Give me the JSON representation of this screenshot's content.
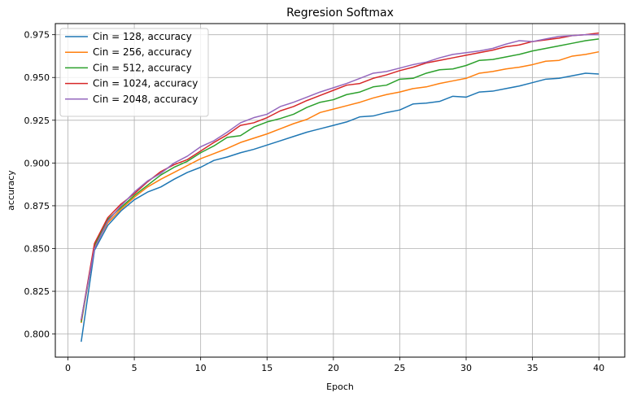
{
  "chart_data": {
    "type": "line",
    "title": "Regresion Softmax",
    "xlabel": "Epoch",
    "ylabel": "accuracy",
    "xlim": [
      -0.95,
      41.95
    ],
    "ylim": [
      0.7865,
      0.9815
    ],
    "xticks": [
      0,
      5,
      10,
      15,
      20,
      25,
      30,
      35,
      40
    ],
    "yticks": [
      0.8,
      0.825,
      0.85,
      0.875,
      0.9,
      0.925,
      0.95,
      0.975
    ],
    "grid": true,
    "legend_position": "top-left",
    "x": [
      1,
      2,
      3,
      4,
      5,
      6,
      7,
      8,
      9,
      10,
      11,
      12,
      13,
      14,
      15,
      16,
      17,
      18,
      19,
      20,
      21,
      22,
      23,
      24,
      25,
      26,
      27,
      28,
      29,
      30,
      31,
      32,
      33,
      34,
      35,
      36,
      37,
      38,
      39,
      40
    ],
    "series": [
      {
        "name": "Cin = 128, accuracy",
        "color": "#1f77b4",
        "values": [
          0.7955,
          0.849,
          0.8635,
          0.872,
          0.8785,
          0.883,
          0.886,
          0.8905,
          0.8945,
          0.8975,
          0.9015,
          0.9035,
          0.906,
          0.908,
          0.9105,
          0.913,
          0.9155,
          0.918,
          0.92,
          0.922,
          0.924,
          0.927,
          0.9275,
          0.9295,
          0.931,
          0.9345,
          0.935,
          0.936,
          0.939,
          0.9385,
          0.9415,
          0.942,
          0.9435,
          0.945,
          0.947,
          0.949,
          0.9495,
          0.951,
          0.9525,
          0.952
        ]
      },
      {
        "name": "Cin = 256, accuracy",
        "color": "#ff7f0e",
        "values": [
          0.8065,
          0.851,
          0.865,
          0.873,
          0.88,
          0.886,
          0.8905,
          0.8945,
          0.8985,
          0.9025,
          0.9055,
          0.9085,
          0.912,
          0.9145,
          0.917,
          0.92,
          0.923,
          0.9255,
          0.9295,
          0.9315,
          0.9335,
          0.9355,
          0.938,
          0.94,
          0.9415,
          0.9435,
          0.9445,
          0.9465,
          0.948,
          0.9495,
          0.9525,
          0.9535,
          0.955,
          0.956,
          0.9575,
          0.9595,
          0.96,
          0.9625,
          0.9635,
          0.965
        ]
      },
      {
        "name": "Cin = 512, accuracy",
        "color": "#2ca02c",
        "values": [
          0.807,
          0.852,
          0.867,
          0.874,
          0.881,
          0.887,
          0.893,
          0.8975,
          0.901,
          0.906,
          0.91,
          0.915,
          0.916,
          0.921,
          0.924,
          0.926,
          0.9285,
          0.9325,
          0.9355,
          0.937,
          0.94,
          0.9415,
          0.9445,
          0.9455,
          0.949,
          0.9495,
          0.9525,
          0.9545,
          0.955,
          0.957,
          0.96,
          0.9605,
          0.962,
          0.9635,
          0.9655,
          0.967,
          0.9685,
          0.97,
          0.9715,
          0.9725
        ]
      },
      {
        "name": "Cin = 1024, accuracy",
        "color": "#d62728",
        "values": [
          0.808,
          0.853,
          0.868,
          0.876,
          0.882,
          0.889,
          0.895,
          0.899,
          0.902,
          0.907,
          0.912,
          0.9165,
          0.922,
          0.9235,
          0.9265,
          0.9305,
          0.933,
          0.9365,
          0.9395,
          0.9425,
          0.9455,
          0.9465,
          0.9495,
          0.9515,
          0.954,
          0.956,
          0.9585,
          0.96,
          0.9615,
          0.963,
          0.9645,
          0.966,
          0.968,
          0.969,
          0.971,
          0.972,
          0.973,
          0.9745,
          0.975,
          0.976
        ]
      },
      {
        "name": "Cin = 2048, accuracy",
        "color": "#9467bd",
        "values": [
          0.8085,
          0.85,
          0.866,
          0.875,
          0.883,
          0.8895,
          0.894,
          0.9,
          0.904,
          0.9095,
          0.913,
          0.918,
          0.9235,
          0.9265,
          0.9285,
          0.933,
          0.9355,
          0.9385,
          0.9415,
          0.944,
          0.9465,
          0.9495,
          0.9525,
          0.9535,
          0.9555,
          0.9575,
          0.959,
          0.9615,
          0.9635,
          0.9645,
          0.9655,
          0.967,
          0.9695,
          0.9715,
          0.971,
          0.9725,
          0.974,
          0.9745,
          0.975,
          0.975
        ]
      }
    ]
  }
}
